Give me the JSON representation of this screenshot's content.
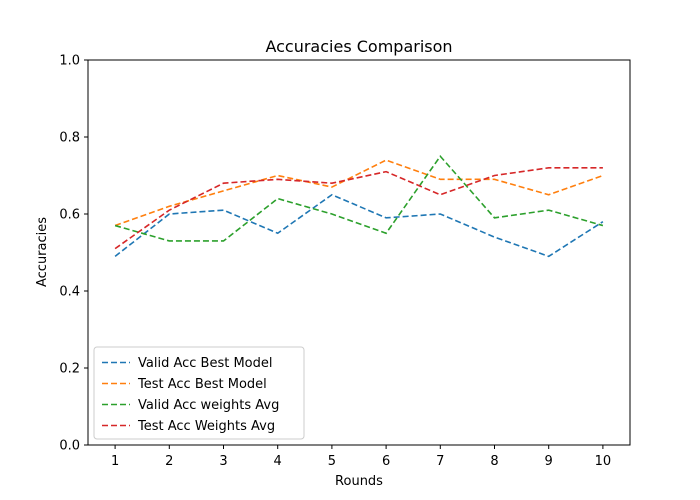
{
  "chart_data": {
    "type": "line",
    "title": "Accuracies Comparison",
    "xlabel": "Rounds",
    "ylabel": "Accuracies",
    "x": [
      1,
      2,
      3,
      4,
      5,
      6,
      7,
      8,
      9,
      10
    ],
    "xlim": [
      0.5,
      10.5
    ],
    "ylim": [
      0.0,
      1.0
    ],
    "yticks": [
      0.0,
      0.2,
      0.4,
      0.6,
      0.8,
      1.0
    ],
    "ytick_labels": [
      "0.0",
      "0.2",
      "0.4",
      "0.6",
      "0.8",
      "1.0"
    ],
    "xtick_labels": [
      "1",
      "2",
      "3",
      "4",
      "5",
      "6",
      "7",
      "8",
      "9",
      "10"
    ],
    "grid": false,
    "line_style": "dashed",
    "legend_placement": "lower-left",
    "series": [
      {
        "name": "Valid Acc Best Model",
        "color": "#1f77b4",
        "values": [
          0.49,
          0.6,
          0.61,
          0.55,
          0.65,
          0.59,
          0.6,
          0.54,
          0.49,
          0.58
        ]
      },
      {
        "name": "Test Acc Best Model",
        "color": "#ff7f0e",
        "values": [
          0.57,
          0.62,
          0.66,
          0.7,
          0.67,
          0.74,
          0.69,
          0.69,
          0.65,
          0.7
        ]
      },
      {
        "name": "Valid Acc weights Avg",
        "color": "#2ca02c",
        "values": [
          0.57,
          0.53,
          0.53,
          0.64,
          0.6,
          0.55,
          0.75,
          0.59,
          0.61,
          0.57
        ]
      },
      {
        "name": "Test Acc Weights Avg",
        "color": "#d62728",
        "values": [
          0.51,
          0.61,
          0.68,
          0.69,
          0.68,
          0.71,
          0.65,
          0.7,
          0.72,
          0.72
        ]
      }
    ]
  }
}
